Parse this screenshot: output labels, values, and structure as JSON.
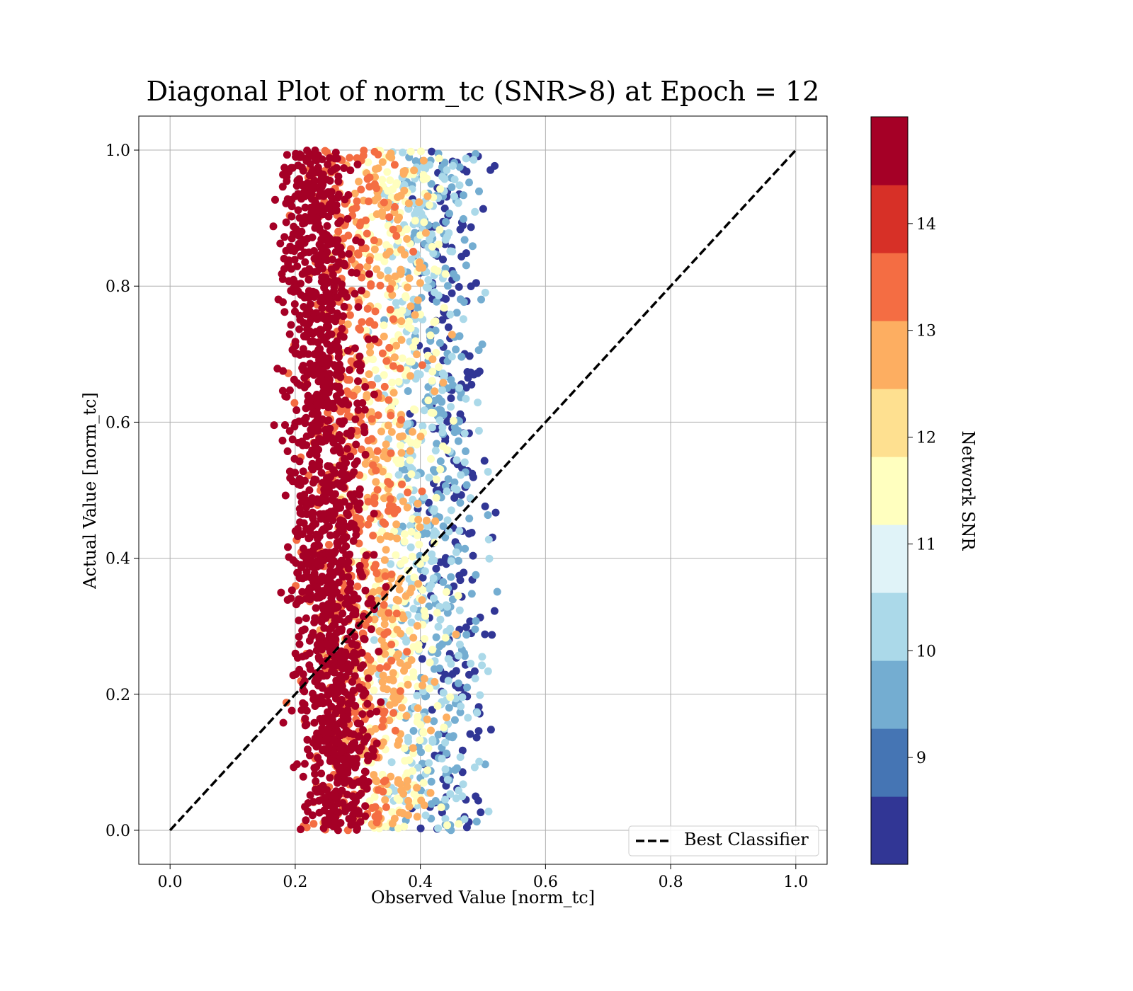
{
  "chart_data": {
    "type": "scatter",
    "title": "Diagonal Plot of norm_tc (SNR>8) at Epoch = 12",
    "xlabel": "Observed Value [norm_tc]",
    "ylabel": "Actual Value [norm_tc]",
    "xlim": [
      -0.05,
      1.05
    ],
    "ylim": [
      -0.05,
      1.05
    ],
    "xticks": [
      "0.0",
      "0.2",
      "0.4",
      "0.6",
      "0.8",
      "1.0"
    ],
    "yticks": [
      "0.0",
      "0.2",
      "0.4",
      "0.6",
      "0.8",
      "1.0"
    ],
    "grid": true,
    "legend": {
      "position": "bottom-right",
      "entries": [
        "Best Classifier"
      ]
    },
    "reference_line": {
      "name": "Best Classifier",
      "style": "dashed",
      "color": "#000000",
      "x": [
        0,
        1
      ],
      "y": [
        0,
        1
      ]
    },
    "colorbar": {
      "label": "Network SNR",
      "ticks": [
        "9",
        "10",
        "11",
        "12",
        "13",
        "14"
      ],
      "tick_values": [
        9,
        10,
        11,
        12,
        13,
        14
      ],
      "range": [
        8,
        15
      ],
      "colors": [
        "#313695",
        "#4575b4",
        "#74add1",
        "#abd9e9",
        "#e0f3f8",
        "#ffffbf",
        "#fee090",
        "#fdae61",
        "#f46d43",
        "#d73027",
        "#a50026"
      ]
    },
    "scatter_distribution": {
      "y_range": [
        0,
        1
      ],
      "snr_bands": [
        {
          "snr": 14.5,
          "x_center": 0.25,
          "x_spread": 0.03
        },
        {
          "snr": 13.5,
          "x_center": 0.29,
          "x_spread": 0.04
        },
        {
          "snr": 12.5,
          "x_center": 0.34,
          "x_spread": 0.04
        },
        {
          "snr": 11.5,
          "x_center": 0.37,
          "x_spread": 0.04
        },
        {
          "snr": 10.5,
          "x_center": 0.41,
          "x_spread": 0.04
        },
        {
          "snr": 9.5,
          "x_center": 0.43,
          "x_spread": 0.035
        },
        {
          "snr": 8.5,
          "x_center": 0.45,
          "x_spread": 0.03
        }
      ]
    }
  }
}
